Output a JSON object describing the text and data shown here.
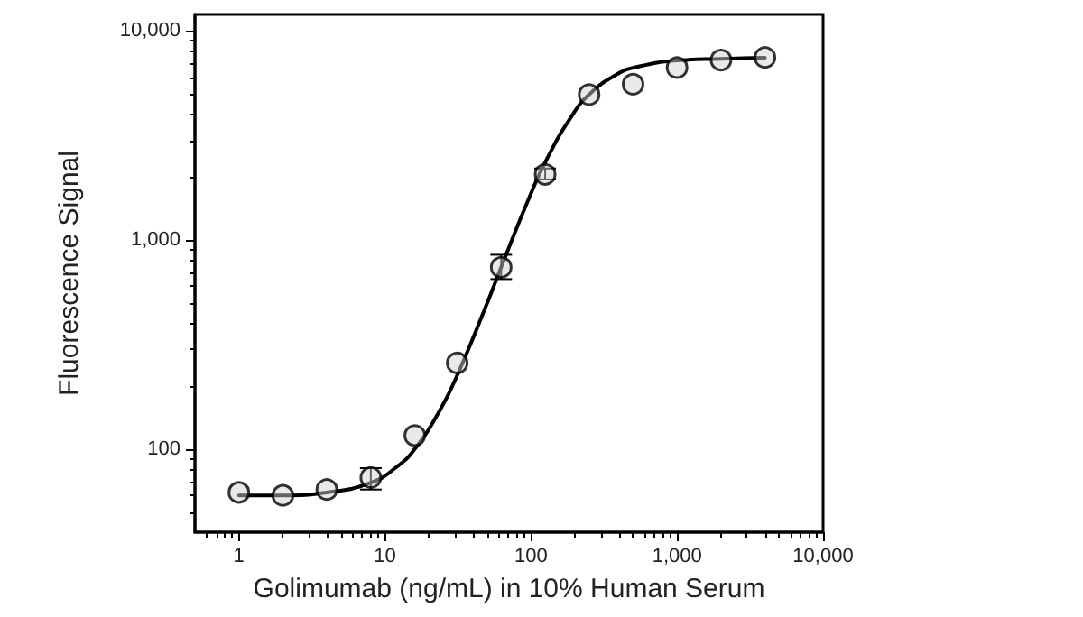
{
  "chart_data": {
    "type": "scatter",
    "xlabel": "Golimumab (ng/mL) in 10% Human Serum",
    "ylabel": "Fluorescence Signal",
    "log": "xy",
    "grid": false,
    "marker": "circle",
    "xlim": [
      0.5,
      10000
    ],
    "xticks": [
      1,
      10,
      100,
      {
        "value": 1000,
        "label": "1,000"
      },
      {
        "value": 10000,
        "label": "10,000"
      }
    ],
    "ylim": [
      40,
      12000
    ],
    "yticks": [
      100,
      {
        "value": 1000,
        "label": "1,000"
      },
      {
        "value": 10000,
        "label": "10,000"
      }
    ],
    "series": [
      {
        "color": "#000000",
        "x": [
          1,
          2,
          4,
          8,
          16,
          31.25,
          62.5,
          125,
          250,
          500,
          1000,
          2000,
          4000
        ],
        "values": [
          62,
          60,
          64,
          73,
          116,
          258,
          740,
          2060,
          4960,
          5560,
          6680,
          7260,
          7470
        ],
        "errors": [
          null,
          null,
          null,
          [
            64,
            81
          ],
          null,
          null,
          [
            650,
            850
          ],
          [
            1950,
            2200
          ],
          null,
          null,
          null,
          null,
          null
        ]
      },
      {
        "type": "line",
        "color": "#000000",
        "marker": "none",
        "line_style": "solid",
        "x": [
          1,
          2,
          4,
          8,
          12,
          16,
          24,
          32,
          48,
          64,
          96,
          128,
          192,
          256,
          384,
          512,
          1000,
          2000,
          4000
        ],
        "values": [
          60,
          60,
          62,
          69,
          82,
          100,
          155,
          234,
          463,
          773,
          1560,
          2430,
          3960,
          5040,
          6180,
          6690,
          7220,
          7360,
          7450
        ]
      }
    ]
  }
}
